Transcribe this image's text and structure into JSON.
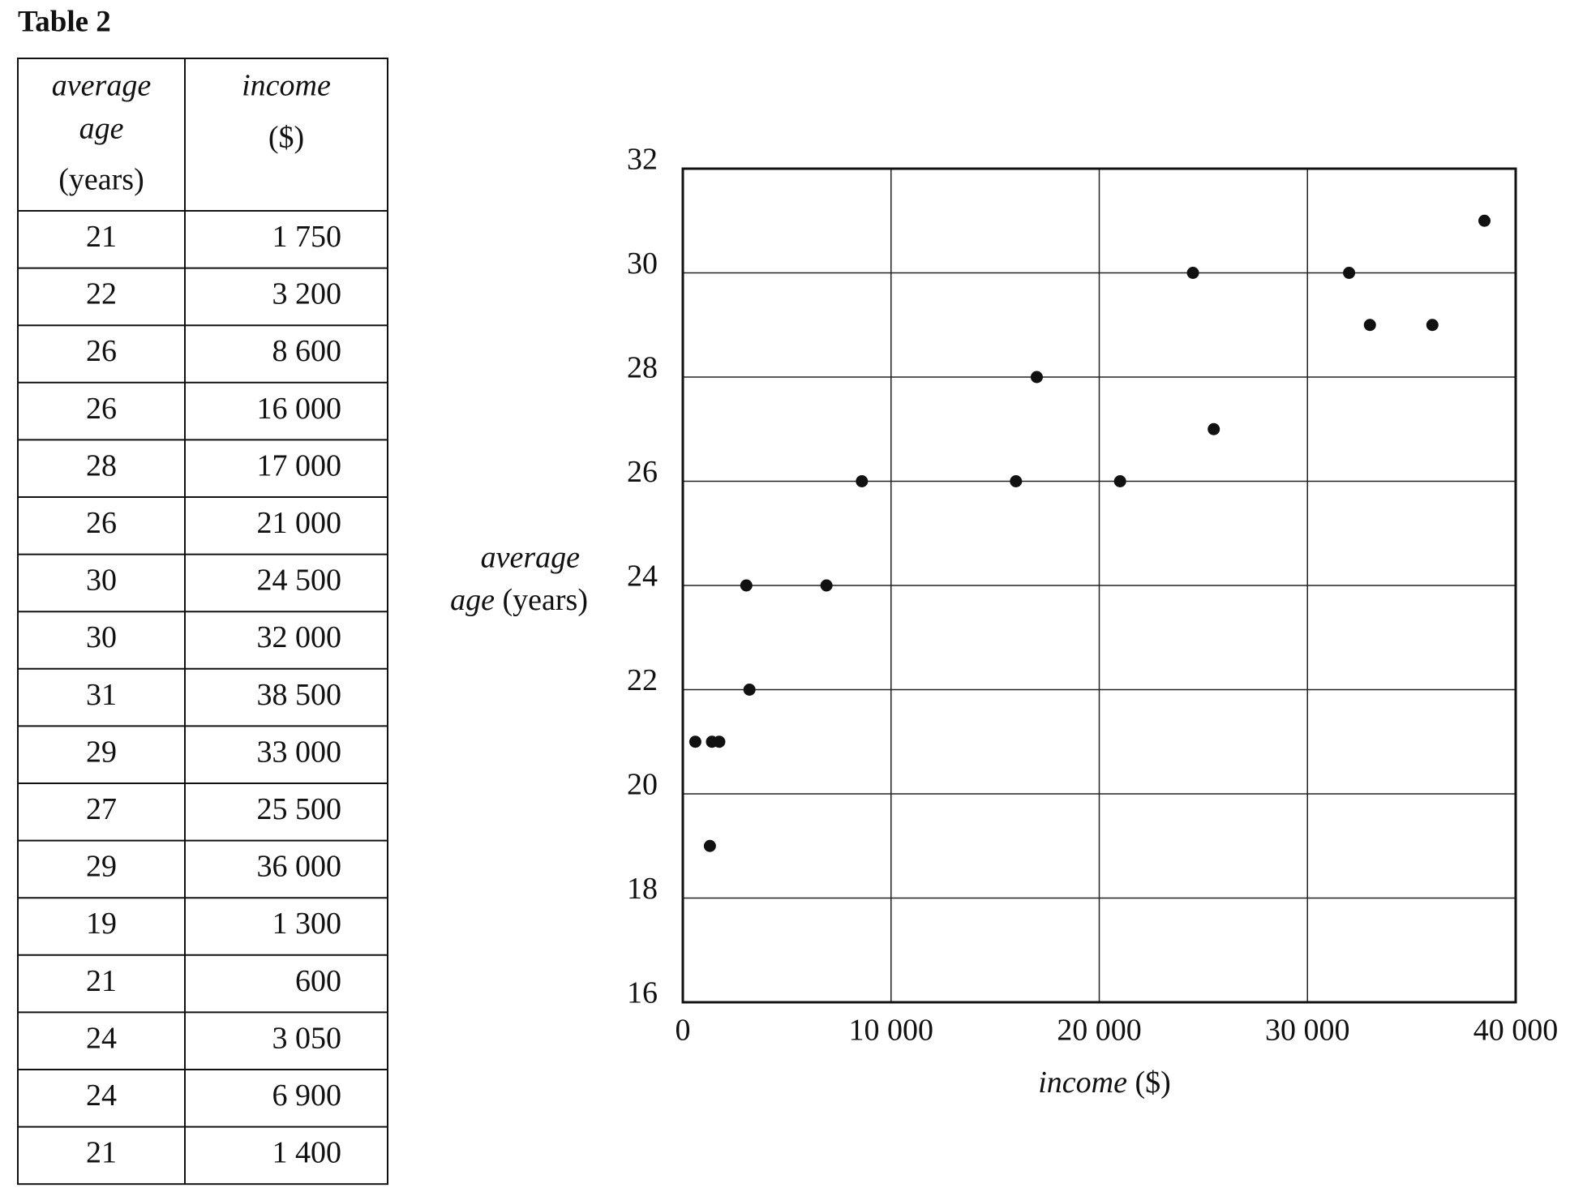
{
  "title": "Table 2",
  "table": {
    "header": [
      [
        "average",
        "age",
        "(years)"
      ],
      [
        "income",
        "($)"
      ]
    ],
    "rows": [
      [
        "21",
        "1 750"
      ],
      [
        "22",
        "3 200"
      ],
      [
        "26",
        "8 600"
      ],
      [
        "26",
        "16 000"
      ],
      [
        "28",
        "17 000"
      ],
      [
        "26",
        "21 000"
      ],
      [
        "30",
        "24 500"
      ],
      [
        "30",
        "32 000"
      ],
      [
        "31",
        "38 500"
      ],
      [
        "29",
        "33 000"
      ],
      [
        "27",
        "25 500"
      ],
      [
        "29",
        "36 000"
      ],
      [
        "19",
        "1 300"
      ],
      [
        "21",
        "600"
      ],
      [
        "24",
        "3 050"
      ],
      [
        "24",
        "6 900"
      ],
      [
        "21",
        "1 400"
      ]
    ]
  },
  "chart_data": {
    "type": "scatter",
    "x_label": [
      "income",
      "($)"
    ],
    "y_label": [
      "average",
      "age",
      "(years)"
    ],
    "x": [
      1750,
      3200,
      8600,
      16000,
      17000,
      21000,
      24500,
      32000,
      38500,
      33000,
      25500,
      36000,
      1300,
      600,
      3050,
      6900,
      1400
    ],
    "values": [
      21,
      22,
      26,
      26,
      28,
      26,
      30,
      30,
      31,
      29,
      27,
      29,
      19,
      21,
      24,
      24,
      21
    ],
    "color": "#111111",
    "xlim": [
      0,
      40000
    ],
    "xticks": [
      0,
      {
        "value": 10000,
        "label": "10 000"
      },
      {
        "value": 20000,
        "label": "20 000"
      },
      {
        "value": 30000,
        "label": "30 000"
      },
      {
        "value": 40000,
        "label": "40 000"
      }
    ],
    "ylim": [
      16,
      32
    ],
    "yticks": [
      16,
      18,
      20,
      22,
      24,
      26,
      28,
      30,
      32
    ],
    "grid": true
  }
}
